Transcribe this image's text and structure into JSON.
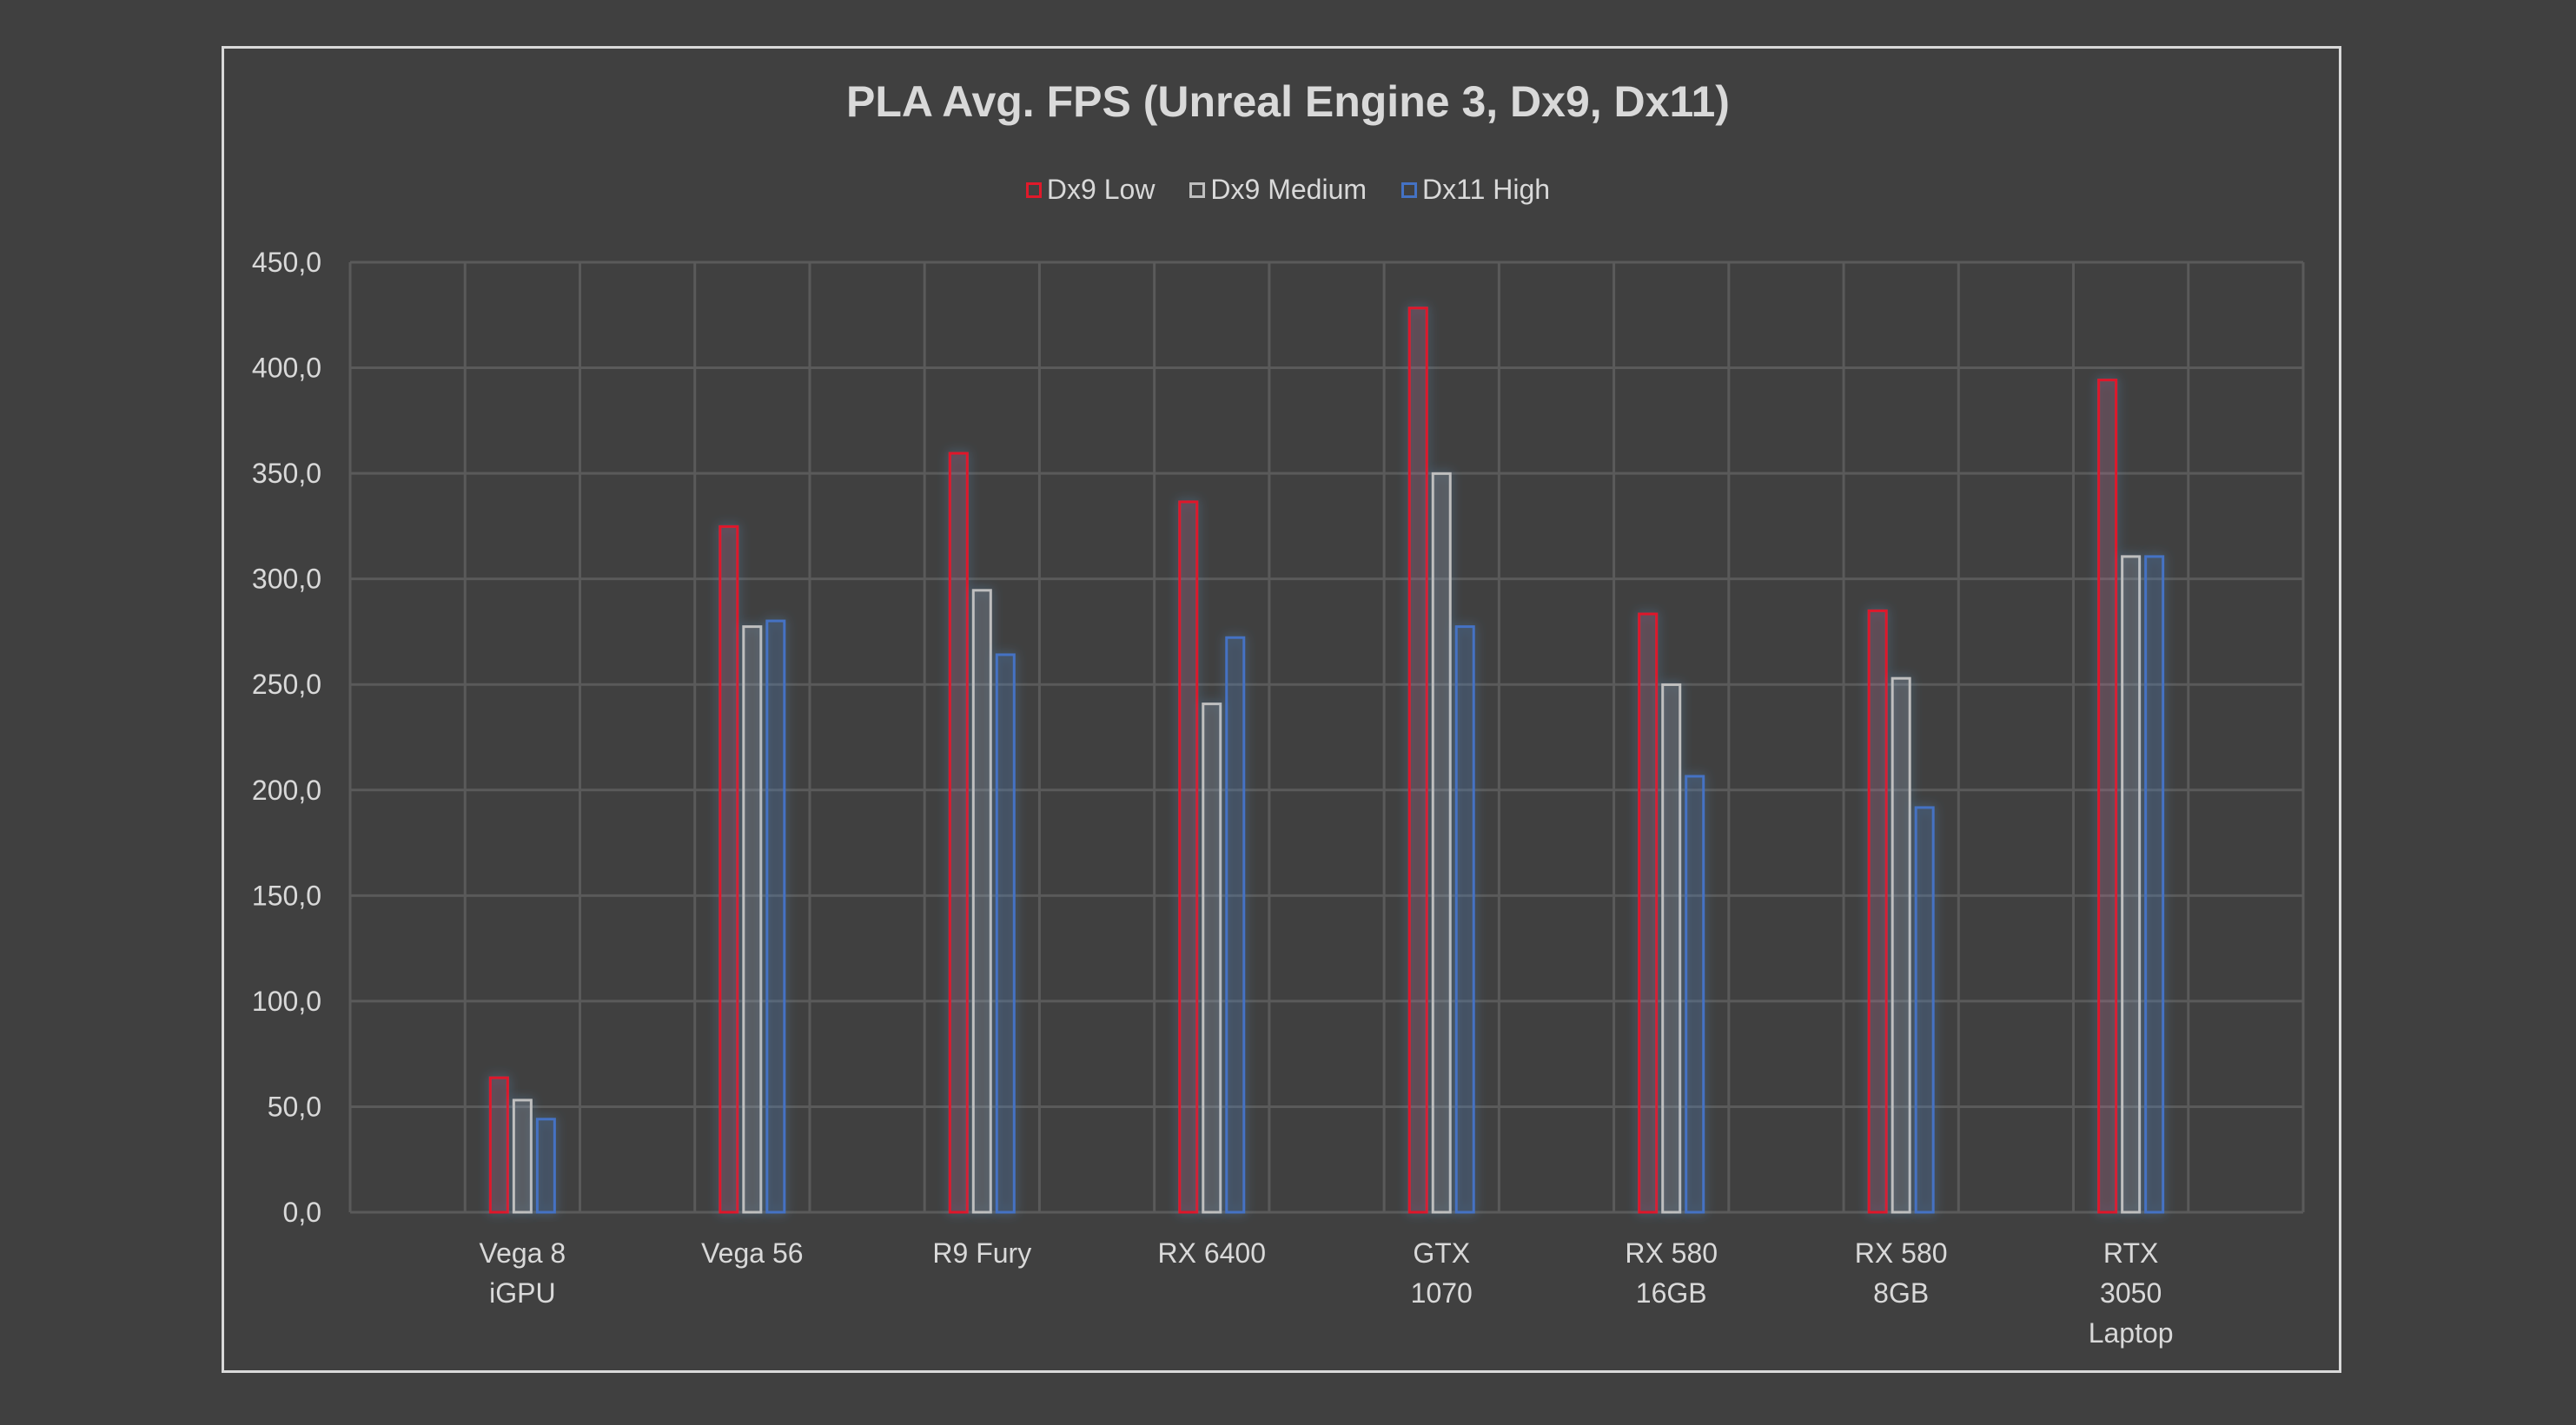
{
  "chart_data": {
    "type": "bar",
    "title": "PLA Avg. FPS (Unreal Engine 3, Dx9, Dx11)",
    "categories": [
      [
        "Vega 8",
        "iGPU"
      ],
      [
        "Vega 56"
      ],
      [
        "R9 Fury"
      ],
      [
        "RX 6400"
      ],
      [
        "GTX",
        "1070"
      ],
      [
        "RX 580",
        "16GB"
      ],
      [
        "RX 580",
        "8GB"
      ],
      [
        "RTX",
        "3050",
        "Laptop"
      ]
    ],
    "series": [
      {
        "name": "Dx9 Low",
        "color": "#e0192a",
        "values": [
          63.7,
          324.8,
          359.5,
          336.5,
          428.3,
          283.4,
          284.9,
          394.2
        ]
      },
      {
        "name": "Dx9 Medium",
        "color": "#bfbfbf",
        "values": [
          53.1,
          277.4,
          294.6,
          240.8,
          349.9,
          249.9,
          252.9,
          310.6
        ]
      },
      {
        "name": "Dx11 High",
        "color": "#4472c4",
        "values": [
          44.1,
          280.1,
          264.1,
          272.2,
          277.4,
          206.5,
          191.7,
          310.6
        ]
      }
    ],
    "ylim": [
      0,
      450
    ],
    "yticks": [
      "0,0",
      "50,0",
      "100,0",
      "150,0",
      "200,0",
      "250,0",
      "300,0",
      "350,0",
      "400,0",
      "450,0"
    ],
    "grid": true,
    "legend_position": "top",
    "background": "#404040"
  }
}
